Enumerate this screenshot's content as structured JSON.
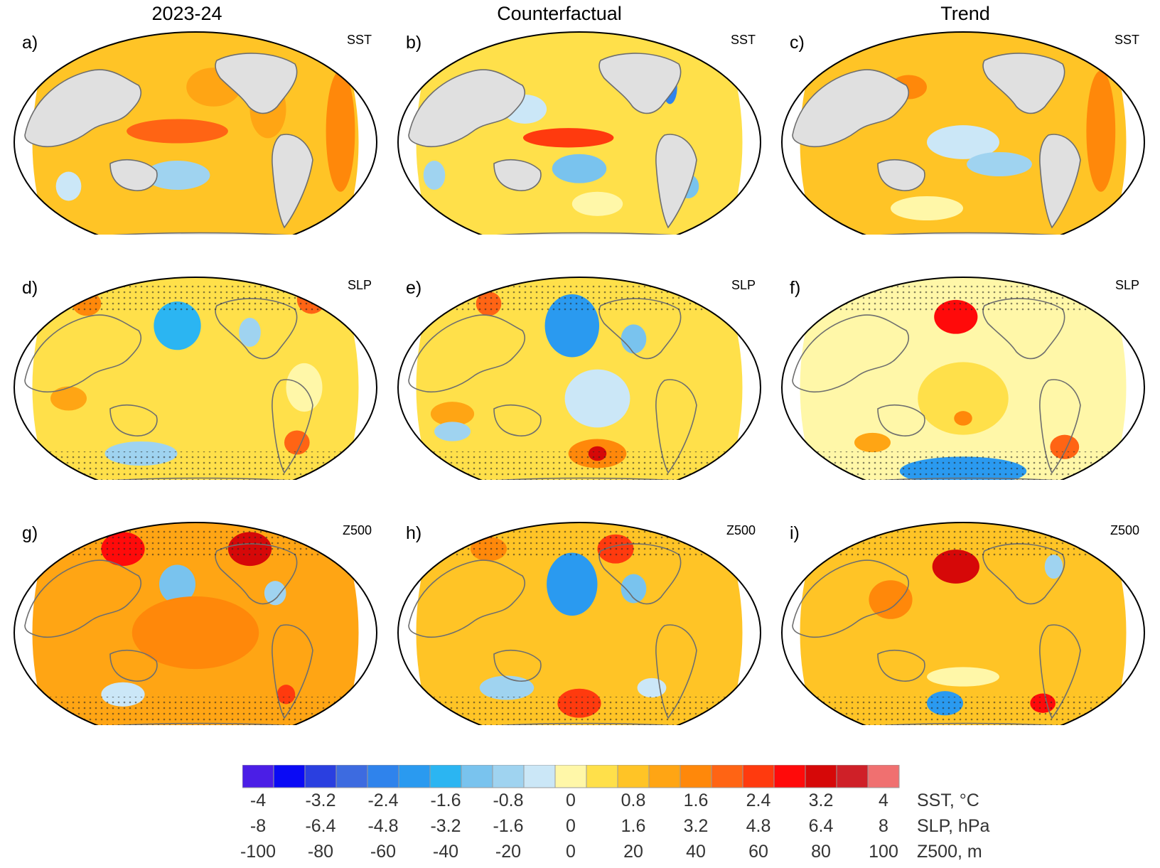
{
  "figure": {
    "column_titles": [
      "2023-24",
      "Counterfactual",
      "Trend"
    ]
  },
  "panels": [
    {
      "label": "a)",
      "variable": "SST",
      "column": "2023-24",
      "row": "SST"
    },
    {
      "label": "b)",
      "variable": "SST",
      "column": "Counterfactual",
      "row": "SST"
    },
    {
      "label": "c)",
      "variable": "SST",
      "column": "Trend",
      "row": "SST"
    },
    {
      "label": "d)",
      "variable": "SLP",
      "column": "2023-24",
      "row": "SLP"
    },
    {
      "label": "e)",
      "variable": "SLP",
      "column": "Counterfactual",
      "row": "SLP"
    },
    {
      "label": "f)",
      "variable": "SLP",
      "column": "Trend",
      "row": "SLP"
    },
    {
      "label": "g)",
      "variable": "Z500",
      "column": "2023-24",
      "row": "Z500"
    },
    {
      "label": "h)",
      "variable": "Z500",
      "column": "Counterfactual",
      "row": "Z500"
    },
    {
      "label": "i)",
      "variable": "Z500",
      "column": "Trend",
      "row": "Z500"
    }
  ],
  "chart_data": {
    "type": "heatmap",
    "description_scope": "3x3 grid of global anomaly maps (Robinson-like projection)",
    "colorbar": {
      "colors": [
        "#4b1ee6",
        "#0a0af5",
        "#2a3fe0",
        "#3d6be0",
        "#2f83ec",
        "#2a9af0",
        "#2bb5f2",
        "#79c3ee",
        "#9fd3f0",
        "#cbe7f7",
        "#fff7a8",
        "#ffe04a",
        "#ffc426",
        "#ffa514",
        "#ff880a",
        "#ff6414",
        "#ff3a0e",
        "#ff0a0a",
        "#d60808",
        "#cf2028",
        "#f07070"
      ],
      "tick_positions_index": [
        0,
        2,
        4,
        6,
        8,
        10,
        12,
        14,
        16,
        18,
        20
      ],
      "rows": [
        {
          "name": "SST, °C",
          "ticks": [
            "-4",
            "-3.2",
            "-2.4",
            "-1.6",
            "-0.8",
            "0",
            "0.8",
            "1.6",
            "2.4",
            "3.2",
            "4"
          ]
        },
        {
          "name": "SLP, hPa",
          "ticks": [
            "-8",
            "-6.4",
            "-4.8",
            "-3.2",
            "-1.6",
            "0",
            "1.6",
            "3.2",
            "4.8",
            "6.4",
            "8"
          ]
        },
        {
          "name": "Z500, m",
          "ticks": [
            "-100",
            "-80",
            "-60",
            "-40",
            "-20",
            "0",
            "20",
            "40",
            "60",
            "80",
            "100"
          ]
        }
      ]
    },
    "maps": [
      {
        "panel": "a",
        "dominant_sign": "warm",
        "features": [
          "El Nino warm tongue in equatorial Pacific",
          "widespread warm North Atlantic",
          "cool patches southern subtropics"
        ]
      },
      {
        "panel": "b",
        "dominant_sign": "mixed",
        "features": [
          "El Nino warm tongue",
          "cool horseshoe west Pacific",
          "cool South Pacific"
        ]
      },
      {
        "panel": "c",
        "dominant_sign": "warm",
        "features": [
          "warm extratropics",
          "cool eastern tropical Pacific"
        ]
      },
      {
        "panel": "d",
        "dominant_sign": "mixed",
        "features": [
          "deep Aleutian low",
          "high over Eurasia/Arctic",
          "high South Atlantic"
        ]
      },
      {
        "panel": "e",
        "dominant_sign": "mixed",
        "features": [
          "very deep Aleutian low",
          "high over South Pacific/Antarctica"
        ]
      },
      {
        "panel": "f",
        "dominant_sign": "mixed",
        "features": [
          "high over North Pacific/Alaska",
          "low Southern Ocean"
        ]
      },
      {
        "panel": "g",
        "dominant_sign": "positive",
        "features": [
          "widespread positive heights",
          "low over North Pacific",
          "high over Canada"
        ]
      },
      {
        "panel": "h",
        "dominant_sign": "mixed",
        "features": [
          "deep North Pacific low",
          "high South Pacific"
        ]
      },
      {
        "panel": "i",
        "dominant_sign": "positive",
        "features": [
          "high over North Pacific",
          "high South Atlantic",
          "low Southern Ocean"
        ]
      }
    ]
  }
}
